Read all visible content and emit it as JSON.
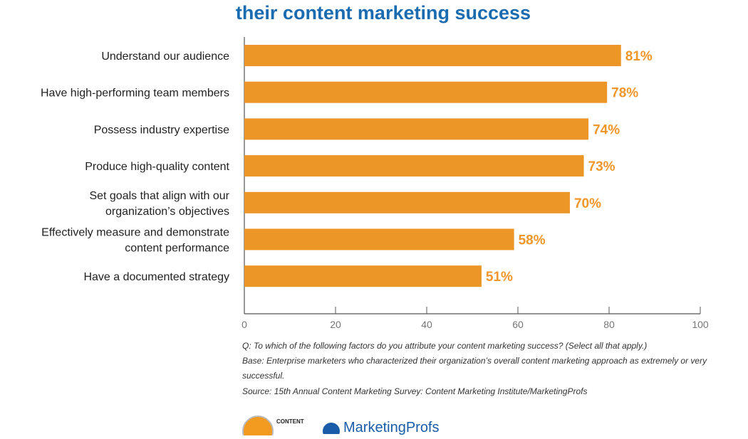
{
  "chart_data": {
    "type": "bar",
    "orientation": "horizontal",
    "title": [
      "... their content marketing success"
    ],
    "title_visible": "their content marketing success",
    "categories": [
      [
        "Understand our audience"
      ],
      [
        "Have high-performing team members"
      ],
      [
        "Possess industry expertise"
      ],
      [
        "Produce high-quality content"
      ],
      [
        "Set goals that align with our",
        "organization’s objectives"
      ],
      [
        "Effectively measure and demonstrate",
        "content performance"
      ],
      [
        "Have a documented strategy"
      ]
    ],
    "values": [
      81,
      78,
      74,
      73,
      70,
      58,
      51
    ],
    "value_labels": [
      "81%",
      "78%",
      "74%",
      "73%",
      "70%",
      "58%",
      "51%"
    ],
    "xlim": [
      0,
      100
    ],
    "xticks": [
      0,
      20,
      40,
      60,
      80,
      100
    ],
    "grid": false,
    "colors": {
      "bar": "#ec9627",
      "label": "#f0962a",
      "title": "#1a6bb0"
    }
  },
  "notes": {
    "question": "Q: To which of the following factors do you attribute your content marketing success? (Select all that apply.)",
    "base": "Base: Enterprise marketers who characterized their organization’s overall content marketing approach as extremely or very successful.",
    "source": "Source: 15th Annual Content Marketing Survey: Content Marketing Institute/MarketingProfs"
  },
  "logos": {
    "cmi": "CONTENT",
    "mp": "MarketingProfs"
  }
}
